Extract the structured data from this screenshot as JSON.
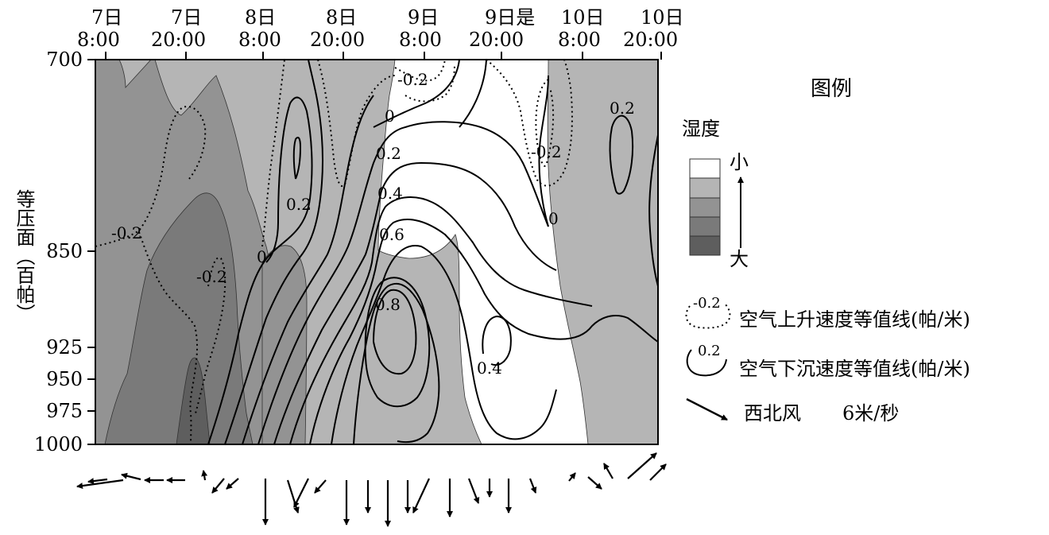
{
  "x_axis": {
    "ticks": [
      {
        "day": "7日",
        "time": "8:00"
      },
      {
        "day": "7日",
        "time": "20:00"
      },
      {
        "day": "8日",
        "time": "8:00"
      },
      {
        "day": "8日",
        "time": "20:00"
      },
      {
        "day": "9日",
        "time": "8:00"
      },
      {
        "day": "9日是",
        "time": "20:00"
      },
      {
        "day": "10日",
        "time": "8:00"
      },
      {
        "day": "10日",
        "time": "20:00"
      }
    ]
  },
  "y_axis": {
    "title": "等压面（百帕）",
    "ticks": [
      "700",
      "850",
      "925",
      "950",
      "975",
      "1000"
    ]
  },
  "contour_labels": [
    "-0.2",
    "0",
    "0.2",
    "-0.2",
    "0.2",
    "-0.2",
    "0.2",
    "0",
    "0.4",
    "0.6",
    "-0.2",
    "0",
    "0.8",
    "0.4"
  ],
  "legend": {
    "title": "图例",
    "humidity_label": "湿度",
    "small": "小",
    "large": "大",
    "humidity_colors": [
      "#ffffff",
      "#b5b5b5",
      "#939393",
      "#7a7a7a",
      "#5e5e5e"
    ],
    "rising": {
      "value": "-0.2",
      "text": "空气上升速度等值线(帕/米)"
    },
    "sinking": {
      "value": "0.2",
      "text": "空气下沉速度等值线(帕/米)"
    },
    "wind": {
      "text": "西北风",
      "speed": "6米/秒"
    }
  }
}
